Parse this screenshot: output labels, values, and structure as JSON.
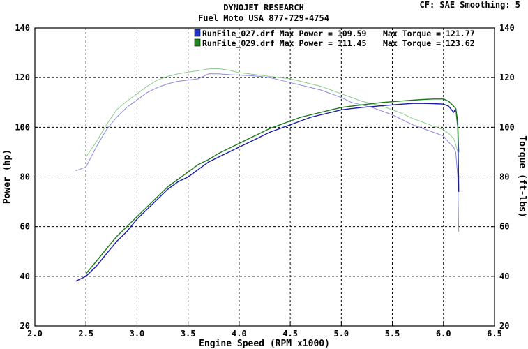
{
  "header": {
    "title": "DYNOJET RESEARCH",
    "subtitle": "Fuel Moto USA 877-729-4754",
    "settings": "CF: SAE  Smoothing: 5"
  },
  "chart_data": {
    "type": "line",
    "xlabel": "Engine Speed (RPM x1000)",
    "ylabel_left": "Power (hp)",
    "ylabel_right": "Torque (ft-lbs)",
    "xlim": [
      2.0,
      6.5
    ],
    "ylim": [
      20,
      140
    ],
    "x_ticks": [
      "2.0",
      "2.5",
      "3.0",
      "3.5",
      "4.0",
      "4.5",
      "5.0",
      "5.5",
      "6.0",
      "6.5"
    ],
    "y_ticks": [
      "20",
      "40",
      "60",
      "80",
      "100",
      "120",
      "140"
    ],
    "grid": true,
    "colors": {
      "run027": "#1a1aa8",
      "run029": "#1a7a1a"
    },
    "legend": [
      {
        "label": "RunFile_027.drf Max Power = 109.59",
        "torque": "Max Torque = 121.77",
        "color": "#2233cc"
      },
      {
        "label": "RunFile_029.drf Max Power = 111.45",
        "torque": "Max Torque = 123.62",
        "color": "#228822"
      }
    ],
    "series": [
      {
        "name": "RunFile_027.drf",
        "kind": "power",
        "color": "#1a1aa8",
        "width": 1.4,
        "x": [
          2.4,
          2.5,
          2.6,
          2.7,
          2.8,
          2.9,
          3.0,
          3.1,
          3.2,
          3.3,
          3.4,
          3.5,
          3.6,
          3.7,
          3.8,
          3.9,
          4.0,
          4.1,
          4.2,
          4.3,
          4.4,
          4.5,
          4.6,
          4.7,
          4.8,
          4.9,
          5.0,
          5.1,
          5.2,
          5.3,
          5.4,
          5.5,
          5.6,
          5.7,
          5.8,
          5.9,
          6.0,
          6.05,
          6.1,
          6.12,
          6.14,
          6.15
        ],
        "y": [
          38,
          40,
          44,
          49,
          54,
          58,
          63,
          67,
          71,
          75,
          78,
          80,
          83,
          86,
          88,
          90,
          92,
          94,
          96,
          98,
          99.5,
          101,
          102.5,
          104,
          105,
          106,
          107,
          107.5,
          108,
          108.3,
          108.7,
          109,
          109.3,
          109.6,
          109.6,
          109.5,
          109.3,
          108.5,
          106,
          107.5,
          102,
          74
        ]
      },
      {
        "name": "RunFile_029.drf",
        "kind": "power",
        "color": "#1a7a1a",
        "width": 1.4,
        "x": [
          2.5,
          2.6,
          2.7,
          2.8,
          2.9,
          3.0,
          3.1,
          3.2,
          3.3,
          3.4,
          3.5,
          3.6,
          3.7,
          3.8,
          3.9,
          4.0,
          4.1,
          4.2,
          4.3,
          4.4,
          4.5,
          4.6,
          4.7,
          4.8,
          4.9,
          5.0,
          5.1,
          5.2,
          5.3,
          5.4,
          5.5,
          5.6,
          5.7,
          5.8,
          5.9,
          6.0,
          6.05,
          6.1,
          6.12,
          6.14,
          6.15
        ],
        "y": [
          41,
          46,
          51,
          56,
          60,
          64,
          68,
          72,
          76,
          79,
          82,
          85,
          87,
          89.5,
          91.5,
          93.5,
          95.5,
          97.5,
          99.5,
          101,
          102.5,
          104,
          105,
          106,
          107,
          108,
          108.5,
          109,
          109.5,
          110,
          110.3,
          110.6,
          110.9,
          111.2,
          111.4,
          111.4,
          110.5,
          108.5,
          107.5,
          100,
          90
        ]
      },
      {
        "name": "RunFile_027.drf",
        "kind": "torque",
        "color": "#8888e0",
        "width": 1,
        "x": [
          2.4,
          2.5,
          2.6,
          2.7,
          2.8,
          2.9,
          3.0,
          3.1,
          3.2,
          3.3,
          3.4,
          3.5,
          3.6,
          3.7,
          3.8,
          3.9,
          4.0,
          4.1,
          4.2,
          4.3,
          4.4,
          4.5,
          4.6,
          4.7,
          4.8,
          4.9,
          5.0,
          5.1,
          5.2,
          5.3,
          5.4,
          5.5,
          5.6,
          5.7,
          5.8,
          5.9,
          6.0,
          6.05,
          6.1,
          6.12,
          6.14,
          6.15
        ],
        "y": [
          82.5,
          84,
          92,
          99,
          104,
          108,
          111,
          114,
          116,
          117.5,
          118.5,
          119,
          119.5,
          121.5,
          121.5,
          121.2,
          121,
          120.8,
          120.5,
          120,
          119,
          118,
          117,
          116,
          115,
          113.5,
          112,
          110,
          109,
          108,
          106.5,
          105,
          103,
          101,
          99.5,
          98,
          96.5,
          94,
          92,
          90,
          80,
          58
        ]
      },
      {
        "name": "RunFile_029.drf",
        "kind": "torque",
        "color": "#8ccc8c",
        "width": 1,
        "x": [
          2.5,
          2.6,
          2.7,
          2.8,
          2.9,
          3.0,
          3.1,
          3.2,
          3.3,
          3.4,
          3.5,
          3.6,
          3.7,
          3.8,
          3.9,
          4.0,
          4.1,
          4.2,
          4.3,
          4.4,
          4.5,
          4.6,
          4.7,
          4.8,
          4.9,
          5.0,
          5.1,
          5.2,
          5.3,
          5.4,
          5.5,
          5.6,
          5.7,
          5.8,
          5.9,
          6.0,
          6.05,
          6.1,
          6.12,
          6.14,
          6.15
        ],
        "y": [
          88,
          94,
          101,
          107,
          110.5,
          113.5,
          116.5,
          119,
          120.5,
          121.5,
          122.2,
          122.8,
          123.5,
          123.6,
          123,
          122,
          121.5,
          121,
          120.5,
          120,
          119.5,
          118.5,
          117.5,
          116.5,
          115,
          113.5,
          112,
          110.5,
          109.5,
          108.5,
          107,
          105.5,
          103.5,
          102,
          100.5,
          99,
          97.5,
          95.5,
          93,
          90,
          80
        ]
      }
    ]
  }
}
